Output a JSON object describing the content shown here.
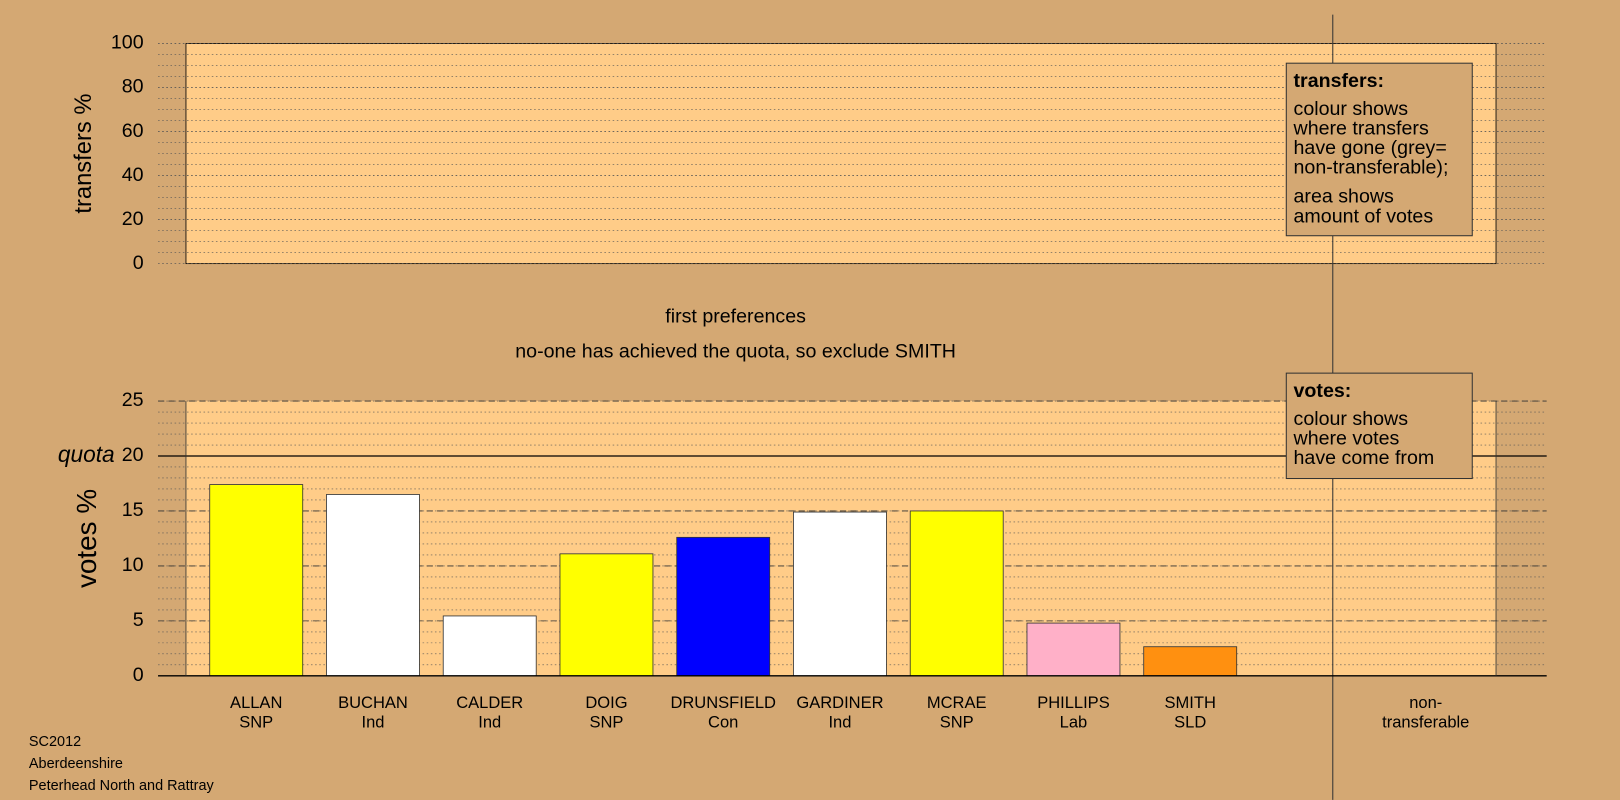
{
  "chart_data": [
    {
      "type": "bar",
      "y_label": "transfers %",
      "ylim": [
        0,
        100
      ],
      "yticks": [
        0,
        20,
        40,
        60,
        80,
        100
      ],
      "legend_title": "transfers:",
      "legend_lines": [
        "colour shows",
        "where transfers",
        "have gone (grey=",
        "non-transferable);",
        "area shows",
        "amount of votes"
      ]
    },
    {
      "type": "bar",
      "title": "first preferences",
      "subtitle": "no-one has achieved the quota, so exclude SMITH",
      "y_label": "votes %",
      "ylim": [
        0,
        25
      ],
      "yticks": [
        0,
        5,
        10,
        15,
        20,
        25
      ],
      "quota": {
        "label": "quota",
        "value": 20
      },
      "categories": [
        "ALLAN",
        "BUCHAN",
        "CALDER",
        "DOIG",
        "DRUNSFIELD",
        "GARDINER",
        "MCRAE",
        "PHILLIPS",
        "SMITH"
      ],
      "parties": [
        "SNP",
        "Ind",
        "Ind",
        "SNP",
        "Con",
        "Ind",
        "SNP",
        "Lab",
        "SLD"
      ],
      "values": [
        17.4,
        16.5,
        5.45,
        11.1,
        12.6,
        14.9,
        15.0,
        4.8,
        2.65
      ],
      "colors": [
        "#ffff00",
        "#ffffff",
        "#ffffff",
        "#ffff00",
        "#0000ff",
        "#ffffff",
        "#ffff00",
        "#ffb0c8",
        "#ff9010"
      ],
      "nontransferable": [
        "non-",
        "transferable"
      ],
      "legend_title": "votes:",
      "legend_lines": [
        "colour shows",
        "where votes",
        "have come from"
      ]
    }
  ],
  "footer": [
    "SC2012",
    "Aberdeenshire",
    "Peterhead North and Rattray"
  ]
}
